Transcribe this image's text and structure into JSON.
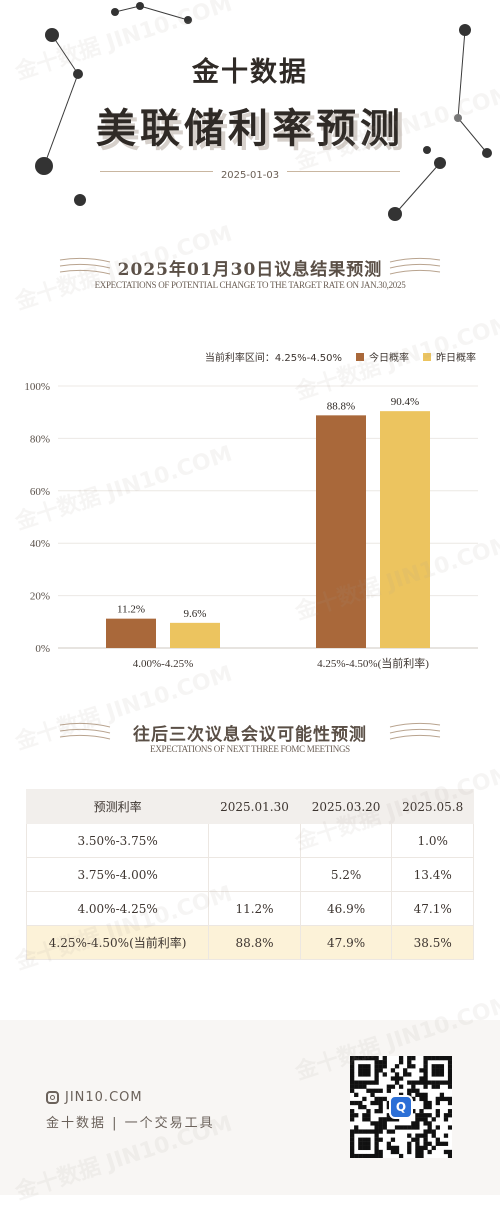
{
  "header": {
    "brand": "金十数据",
    "title": "美联储利率预测",
    "date": "2025-01-03"
  },
  "section1": {
    "title": "2025年01月30日议息结果预测",
    "subtitle": "EXPECTATIONS OF POTENTIAL CHANGE TO THE TARGET RATE ON JAN.30,2025"
  },
  "legend": {
    "current_range": "当前利率区间：4.25%-4.50%",
    "today_label": "今日概率",
    "yesterday_label": "昨日概率"
  },
  "chart_data": {
    "type": "bar",
    "categories": [
      "4.00%-4.25%",
      "4.25%-4.50%(当前利率)"
    ],
    "series": [
      {
        "name": "今日概率",
        "values": [
          11.2,
          88.8
        ],
        "color": "#a9683a"
      },
      {
        "name": "昨日概率",
        "values": [
          9.6,
          90.4
        ],
        "color": "#ecc45f"
      }
    ],
    "value_labels": [
      [
        "11.2%",
        "88.8%"
      ],
      [
        "9.6%",
        "90.4%"
      ]
    ],
    "yticks": [
      "0%",
      "20%",
      "40%",
      "60%",
      "80%",
      "100%"
    ],
    "ylim": [
      0,
      100
    ],
    "grid": true,
    "legend_position": "top-right"
  },
  "section2": {
    "title": "往后三次议息会议可能性预测",
    "subtitle": "EXPECTATIONS OF NEXT THREE FOMC MEETINGS"
  },
  "table": {
    "headers": [
      "预测利率",
      "2025.01.30",
      "2025.03.20",
      "2025.05.8"
    ],
    "rows": [
      [
        "3.50%-3.75%",
        "",
        "",
        "1.0%"
      ],
      [
        "3.75%-4.00%",
        "",
        "5.2%",
        "13.4%"
      ],
      [
        "4.00%-4.25%",
        "11.2%",
        "46.9%",
        "47.1%"
      ],
      [
        "4.25%-4.50%(当前利率)",
        "88.8%",
        "47.9%",
        "38.5%"
      ]
    ]
  },
  "footer": {
    "site": "JIN10.COM",
    "tagline": "金十数据 | 一个交易工具"
  },
  "watermark": "金十数据 JIN10.COM",
  "colors": {
    "today": "#a9683a",
    "yesterday": "#ecc45f",
    "current_row": "#fcf2d8",
    "header_row": "#f2efec"
  }
}
